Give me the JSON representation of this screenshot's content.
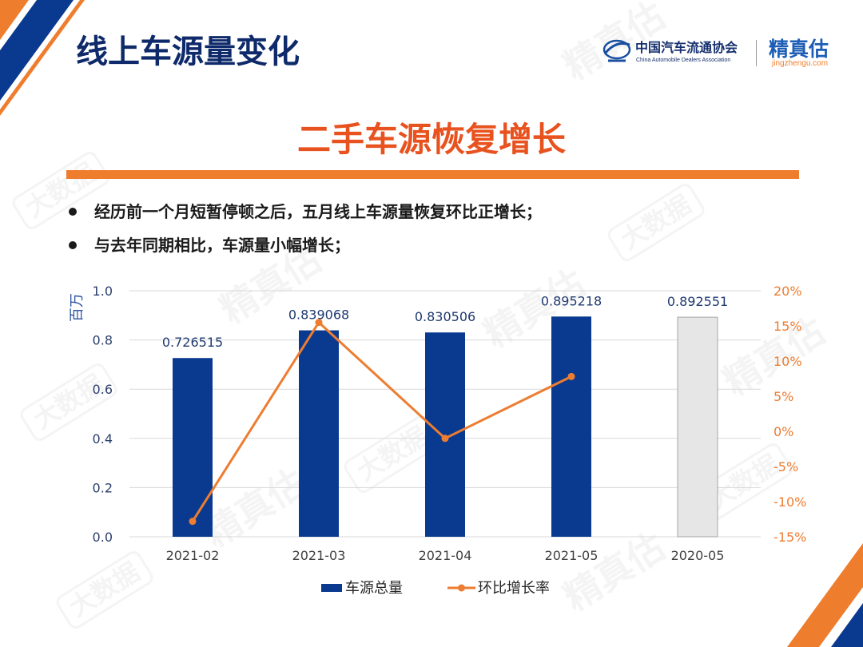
{
  "slide": {
    "title": "线上车源量变化",
    "subtitle": "二手车源恢复增长",
    "bullets": [
      "经历前一个月短暂停顿之后，五月线上车源量恢复环比正增长；",
      "与去年同期相比，车源量小幅增长；"
    ]
  },
  "logos": {
    "cada_name_cn": "中国汽车流通协会",
    "cada_name_en": "China Automobile Dealers Association",
    "jzg_name": "精真估",
    "jzg_url": "jingzhengu.com"
  },
  "watermark": {
    "brand": "精真估",
    "tag": "大数据"
  },
  "colors": {
    "title": "#0f2a6a",
    "subtitle": "#e8521f",
    "accent": "#ee7d2d",
    "brand_blue": "#0a3a8f"
  },
  "chart_data": {
    "type": "bar",
    "categories": [
      "2021-02",
      "2021-03",
      "2021-04",
      "2021-05",
      "2020-05"
    ],
    "series": [
      {
        "name": "车源总量",
        "type": "bar",
        "axis": "left",
        "values": [
          0.726515,
          0.839068,
          0.830506,
          0.895218,
          0.892551
        ],
        "colors": [
          "#0a3a8f",
          "#0a3a8f",
          "#0a3a8f",
          "#0a3a8f",
          "#e6e6e6"
        ],
        "reference_stroke": "#a6a6a6"
      },
      {
        "name": "环比增长率",
        "type": "line",
        "axis": "right",
        "values": [
          -12.8,
          15.5,
          -1.0,
          7.8,
          null
        ],
        "color": "#ed7d31"
      }
    ],
    "ylabel": "百万",
    "ylim": [
      0,
      1.0
    ],
    "yticks": [
      "1.0",
      "0.8",
      "0.6",
      "0.4",
      "0.2",
      "0.0"
    ],
    "y2lim": [
      -15,
      20
    ],
    "y2ticks": [
      "20%",
      "15%",
      "10%",
      "5%",
      "0%",
      "-5%",
      "-10%",
      "-15%"
    ],
    "grid": true,
    "legend": "bottom"
  }
}
